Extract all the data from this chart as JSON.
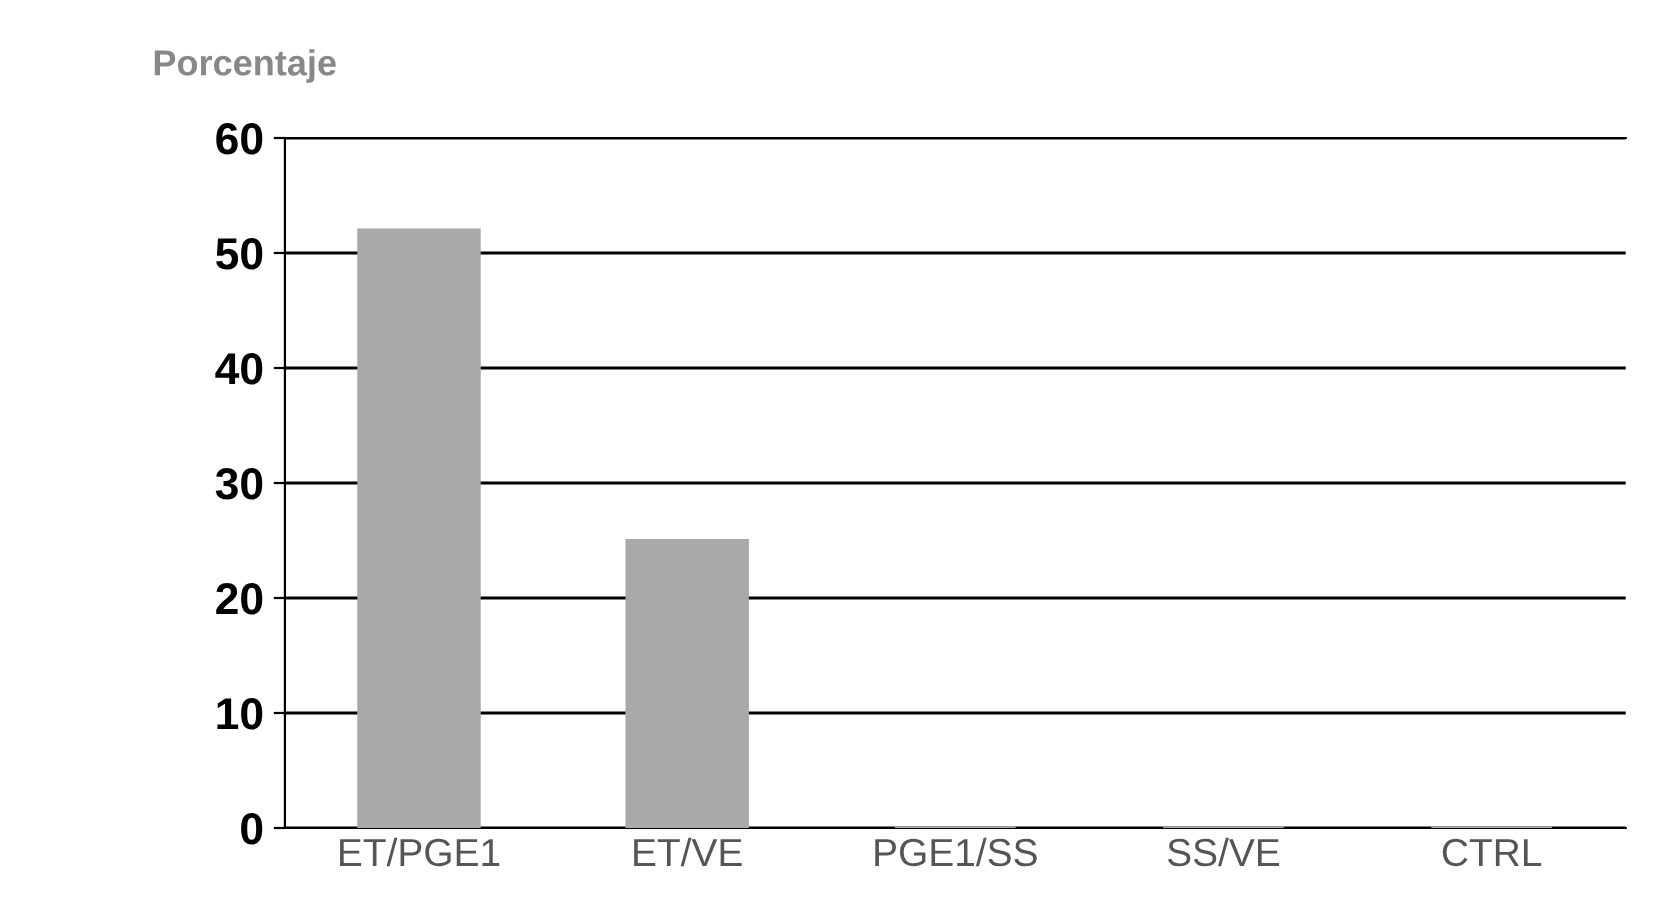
{
  "chart_data": {
    "type": "bar",
    "ylabel": "Porcentaje",
    "categories": [
      "ET/PGE1",
      "ET/VE",
      "PGE1/SS",
      "SS/VE",
      "CTRL"
    ],
    "values": [
      52,
      25,
      0,
      0,
      0
    ],
    "color": "#a9a9a9",
    "ylim": [
      0,
      60
    ],
    "yticks": [
      0,
      10,
      20,
      30,
      40,
      50,
      60
    ],
    "grid": "y"
  }
}
